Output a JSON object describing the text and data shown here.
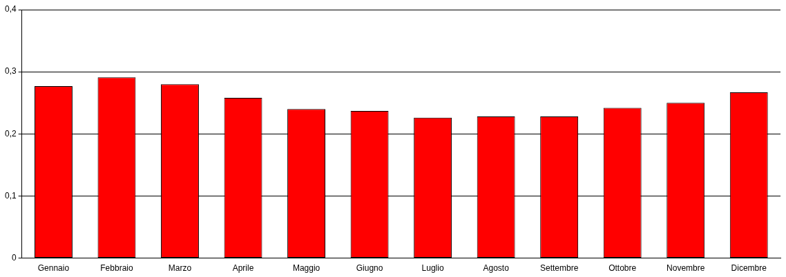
{
  "chart_data": {
    "type": "bar",
    "categories": [
      "Gennaio",
      "Febbraio",
      "Marzo",
      "Aprile",
      "Maggio",
      "Giugno",
      "Luglio",
      "Agosto",
      "Settembre",
      "Ottobre",
      "Novembre",
      "Dicembre"
    ],
    "values": [
      0.277,
      0.291,
      0.28,
      0.258,
      0.24,
      0.237,
      0.226,
      0.228,
      0.228,
      0.242,
      0.25,
      0.267
    ],
    "color": "#ff0000",
    "ylim": [
      0,
      0.4
    ],
    "yticks": [
      0,
      {
        "value": 0.1,
        "label": "0,1"
      },
      {
        "value": 0.2,
        "label": "0,2"
      },
      {
        "value": 0.3,
        "label": "0,3"
      },
      {
        "value": 0.4,
        "label": "0,4"
      }
    ],
    "grid": "y",
    "legend": false
  }
}
